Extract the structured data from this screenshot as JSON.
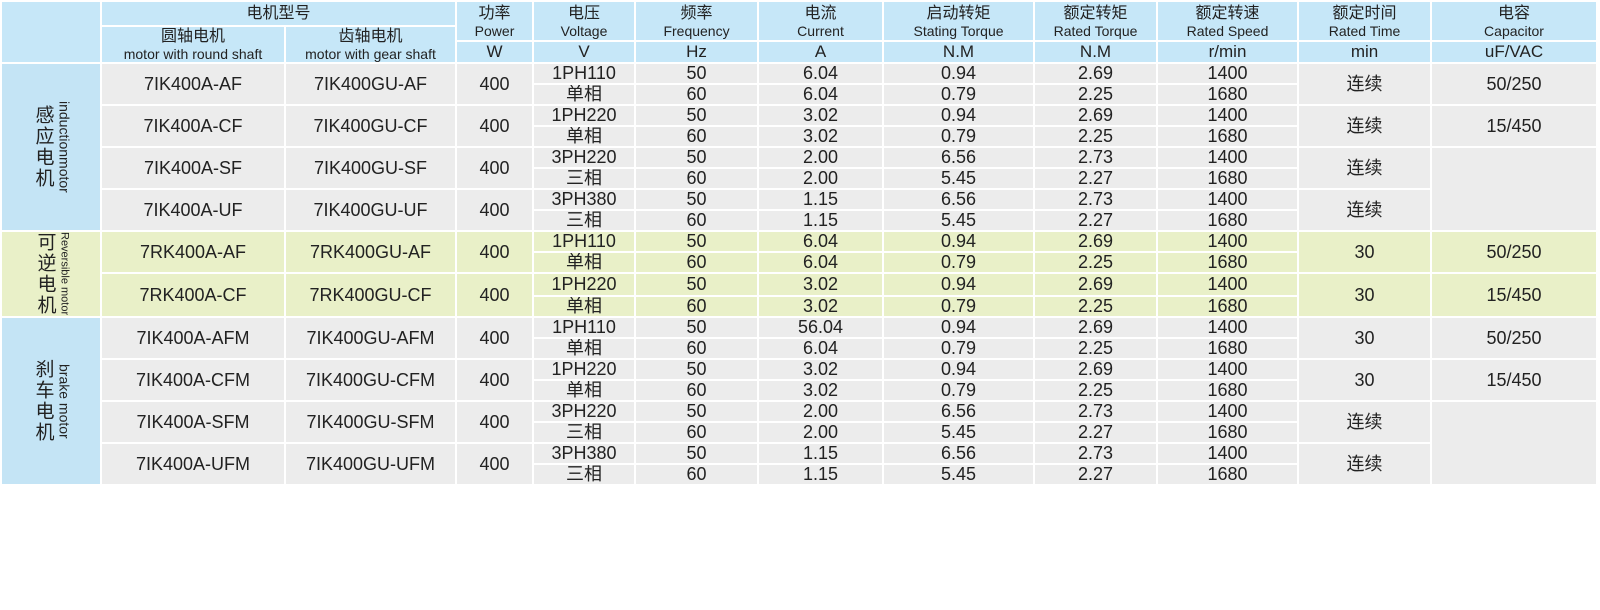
{
  "header": {
    "model": "电机型号",
    "round": {
      "cn": "圆轴电机",
      "en": "motor with round shaft"
    },
    "gear": {
      "cn": "齿轴电机",
      "en": "motor with gear shaft"
    },
    "columns": [
      {
        "cn": "功率",
        "en": "Power",
        "unit": "W"
      },
      {
        "cn": "电压",
        "en": "Voltage",
        "unit": "V"
      },
      {
        "cn": "频率",
        "en": "Frequency",
        "unit": "Hz"
      },
      {
        "cn": "电流",
        "en": "Current",
        "unit": "A"
      },
      {
        "cn": "启动转矩",
        "en": "Stating Torque",
        "unit": "N.M"
      },
      {
        "cn": "额定转矩",
        "en": "Rated Torque",
        "unit": "N.M"
      },
      {
        "cn": "额定转速",
        "en": "Rated Speed",
        "unit": "r/min"
      },
      {
        "cn": "额定时间",
        "en": "Rated Time",
        "unit": "min"
      },
      {
        "cn": "电容",
        "en": "Capacitor",
        "unit": "uF/VAC"
      }
    ]
  },
  "groups": [
    {
      "cn": "感应电机",
      "en": "inductionmotor",
      "models": [
        {
          "round": "7IK400A-AF",
          "gear": "7IK400GU-AF",
          "power": "400",
          "rows": [
            [
              "1PH110",
              "50",
              "6.04",
              "0.94",
              "2.69",
              "1400"
            ],
            [
              "单相",
              "60",
              "6.04",
              "0.79",
              "2.25",
              "1680"
            ]
          ],
          "time": "连续",
          "capacitor": "50/250"
        },
        {
          "round": "7IK400A-CF",
          "gear": "7IK400GU-CF",
          "power": "400",
          "rows": [
            [
              "1PH220",
              "50",
              "3.02",
              "0.94",
              "2.69",
              "1400"
            ],
            [
              "单相",
              "60",
              "3.02",
              "0.79",
              "2.25",
              "1680"
            ]
          ],
          "time": "连续",
          "capacitor": "15/450"
        },
        {
          "round": "7IK400A-SF",
          "gear": "7IK400GU-SF",
          "power": "400",
          "rows": [
            [
              "3PH220",
              "50",
              "2.00",
              "6.56",
              "2.73",
              "1400"
            ],
            [
              "三相",
              "60",
              "2.00",
              "5.45",
              "2.27",
              "1680"
            ]
          ],
          "time": "连续"
        },
        {
          "round": "7IK400A-UF",
          "gear": "7IK400GU-UF",
          "power": "400",
          "rows": [
            [
              "3PH380",
              "50",
              "1.15",
              "6.56",
              "2.73",
              "1400"
            ],
            [
              "三相",
              "60",
              "1.15",
              "5.45",
              "2.27",
              "1680"
            ]
          ],
          "time": "连续"
        }
      ]
    },
    {
      "cn": "可逆电机",
      "en": "Reversible motor",
      "models": [
        {
          "round": "7RK400A-AF",
          "gear": "7RK400GU-AF",
          "power": "400",
          "rows": [
            [
              "1PH110",
              "50",
              "6.04",
              "0.94",
              "2.69",
              "1400"
            ],
            [
              "单相",
              "60",
              "6.04",
              "0.79",
              "2.25",
              "1680"
            ]
          ],
          "time": "30",
          "capacitor": "50/250"
        },
        {
          "round": "7RK400A-CF",
          "gear": "7RK400GU-CF",
          "power": "400",
          "rows": [
            [
              "1PH220",
              "50",
              "3.02",
              "0.94",
              "2.69",
              "1400"
            ],
            [
              "单相",
              "60",
              "3.02",
              "0.79",
              "2.25",
              "1680"
            ]
          ],
          "time": "30",
          "capacitor": "15/450"
        }
      ]
    },
    {
      "cn": "刹车电机",
      "en": "brake motor",
      "models": [
        {
          "round": "7IK400A-AFM",
          "gear": "7IK400GU-AFM",
          "power": "400",
          "rows": [
            [
              "1PH110",
              "50",
              "56.04",
              "0.94",
              "2.69",
              "1400"
            ],
            [
              "单相",
              "60",
              "6.04",
              "0.79",
              "2.25",
              "1680"
            ]
          ],
          "time": "30",
          "capacitor": "50/250"
        },
        {
          "round": "7IK400A-CFM",
          "gear": "7IK400GU-CFM",
          "power": "400",
          "rows": [
            [
              "1PH220",
              "50",
              "3.02",
              "0.94",
              "2.69",
              "1400"
            ],
            [
              "单相",
              "60",
              "3.02",
              "0.79",
              "2.25",
              "1680"
            ]
          ],
          "time": "30",
          "capacitor": "15/450"
        },
        {
          "round": "7IK400A-SFM",
          "gear": "7IK400GU-SFM",
          "power": "400",
          "rows": [
            [
              "3PH220",
              "50",
              "2.00",
              "6.56",
              "2.73",
              "1400"
            ],
            [
              "三相",
              "60",
              "2.00",
              "5.45",
              "2.27",
              "1680"
            ]
          ],
          "time": "连续"
        },
        {
          "round": "7IK400A-UFM",
          "gear": "7IK400GU-UFM",
          "power": "400",
          "rows": [
            [
              "3PH380",
              "50",
              "1.15",
              "6.56",
              "2.73",
              "1400"
            ],
            [
              "三相",
              "60",
              "1.15",
              "5.45",
              "2.27",
              "1680"
            ]
          ],
          "time": "连续"
        }
      ]
    }
  ]
}
